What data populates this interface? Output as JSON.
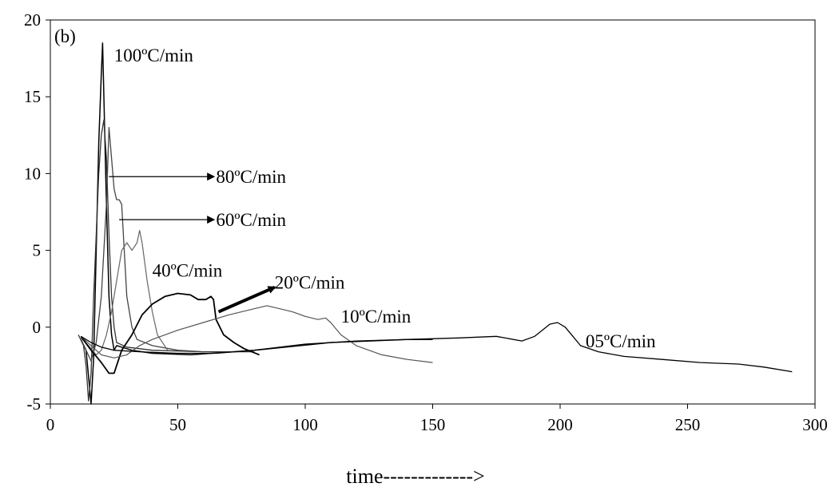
{
  "chart_data": {
    "type": "line",
    "title": "",
    "panel_label": "(b)",
    "xlabel": "time------------->",
    "ylabel": "",
    "xlim": [
      0,
      300
    ],
    "ylim": [
      -5,
      20
    ],
    "xticks": [
      0,
      50,
      100,
      150,
      200,
      250,
      300
    ],
    "yticks": [
      -5,
      0,
      5,
      10,
      15,
      20
    ],
    "grid": false,
    "legend": "none",
    "series": [
      {
        "name": "100ºC/min",
        "stroke": "#000000",
        "width": 1.5,
        "points": [
          [
            12,
            -0.8
          ],
          [
            14,
            -1.5
          ],
          [
            15,
            -3.2
          ],
          [
            16,
            -5
          ],
          [
            17,
            -2
          ],
          [
            18,
            5
          ],
          [
            19,
            12
          ],
          [
            20,
            16.5
          ],
          [
            20.5,
            18.5
          ],
          [
            21,
            15
          ],
          [
            22,
            8
          ],
          [
            23,
            2
          ],
          [
            24,
            -0.5
          ],
          [
            25,
            -1.5
          ],
          [
            26,
            -1.2
          ],
          [
            28,
            -1.3
          ],
          [
            32,
            -1.5
          ],
          [
            40,
            -1.7
          ],
          [
            55,
            -1.8
          ],
          [
            80,
            -1.5
          ],
          [
            110,
            -1
          ],
          [
            140,
            -0.8
          ],
          [
            150,
            -0.8
          ]
        ]
      },
      {
        "name": "80ºC/min",
        "stroke": "#333333",
        "width": 1.3,
        "points": [
          [
            11,
            -0.5
          ],
          [
            13,
            -1.2
          ],
          [
            14,
            -2.5
          ],
          [
            15,
            -4.8
          ],
          [
            16,
            -3
          ],
          [
            17,
            2
          ],
          [
            18,
            6
          ],
          [
            19,
            10
          ],
          [
            20,
            12.5
          ],
          [
            21,
            13.5
          ],
          [
            22,
            11
          ],
          [
            23,
            6
          ],
          [
            24,
            2
          ],
          [
            25,
            0
          ],
          [
            26,
            -1
          ],
          [
            30,
            -1.3
          ],
          [
            40,
            -1.5
          ],
          [
            60,
            -1.6
          ],
          [
            80,
            -1.6
          ]
        ]
      },
      {
        "name": "60ºC/min",
        "stroke": "#444444",
        "width": 1.3,
        "points": [
          [
            12,
            -0.8
          ],
          [
            14,
            -1.5
          ],
          [
            16,
            -2.2
          ],
          [
            18,
            -1
          ],
          [
            20,
            2
          ],
          [
            22,
            8
          ],
          [
            23,
            13
          ],
          [
            24,
            11
          ],
          [
            25,
            9
          ],
          [
            26,
            8.3
          ],
          [
            27,
            8.3
          ],
          [
            28,
            8
          ],
          [
            29,
            5
          ],
          [
            30,
            2
          ],
          [
            32,
            0
          ],
          [
            34,
            -0.8
          ],
          [
            40,
            -1.2
          ],
          [
            50,
            -1.5
          ],
          [
            60,
            -1.6
          ]
        ]
      },
      {
        "name": "40ºC/min",
        "stroke": "#666666",
        "width": 1.2,
        "points": [
          [
            12,
            -0.7
          ],
          [
            15,
            -1.2
          ],
          [
            18,
            -1.8
          ],
          [
            20,
            -1.5
          ],
          [
            22,
            -0.5
          ],
          [
            24,
            1
          ],
          [
            26,
            3
          ],
          [
            28,
            5
          ],
          [
            30,
            5.5
          ],
          [
            32,
            5
          ],
          [
            34,
            5.5
          ],
          [
            35,
            6.3
          ],
          [
            36,
            5.5
          ],
          [
            38,
            3
          ],
          [
            40,
            1
          ],
          [
            42,
            -0.5
          ],
          [
            44,
            -1
          ],
          [
            46,
            -1.5
          ]
        ]
      },
      {
        "name": "20ºC/min",
        "stroke": "#000000",
        "width": 1.8,
        "points": [
          [
            12,
            -0.6
          ],
          [
            16,
            -1.5
          ],
          [
            20,
            -2.3
          ],
          [
            23,
            -3
          ],
          [
            25,
            -3
          ],
          [
            28,
            -1.5
          ],
          [
            32,
            -0.5
          ],
          [
            36,
            0.8
          ],
          [
            40,
            1.5
          ],
          [
            45,
            2
          ],
          [
            50,
            2.2
          ],
          [
            55,
            2.1
          ],
          [
            58,
            1.8
          ],
          [
            61,
            1.8
          ],
          [
            63,
            2
          ],
          [
            64,
            1.8
          ],
          [
            65,
            0.5
          ],
          [
            68,
            -0.5
          ],
          [
            72,
            -1
          ],
          [
            76,
            -1.4
          ],
          [
            82,
            -1.8
          ]
        ]
      },
      {
        "name": "10ºC/min",
        "stroke": "#555555",
        "width": 1.2,
        "points": [
          [
            12,
            -0.6
          ],
          [
            16,
            -1.2
          ],
          [
            20,
            -1.8
          ],
          [
            25,
            -2
          ],
          [
            30,
            -1.8
          ],
          [
            35,
            -1.2
          ],
          [
            40,
            -0.8
          ],
          [
            50,
            -0.2
          ],
          [
            60,
            0.3
          ],
          [
            70,
            0.8
          ],
          [
            80,
            1.2
          ],
          [
            85,
            1.4
          ],
          [
            90,
            1.2
          ],
          [
            95,
            1
          ],
          [
            100,
            0.7
          ],
          [
            105,
            0.5
          ],
          [
            108,
            0.6
          ],
          [
            110,
            0.3
          ],
          [
            114,
            -0.5
          ],
          [
            120,
            -1.2
          ],
          [
            130,
            -1.8
          ],
          [
            140,
            -2.1
          ],
          [
            150,
            -2.3
          ]
        ]
      },
      {
        "name": "05ºC/min",
        "stroke": "#000000",
        "width": 1.3,
        "points": [
          [
            12,
            -0.6
          ],
          [
            16,
            -1
          ],
          [
            20,
            -1.3
          ],
          [
            25,
            -1.5
          ],
          [
            35,
            -1.6
          ],
          [
            50,
            -1.7
          ],
          [
            65,
            -1.7
          ],
          [
            80,
            -1.5
          ],
          [
            100,
            -1.1
          ],
          [
            120,
            -0.9
          ],
          [
            140,
            -0.8
          ],
          [
            160,
            -0.7
          ],
          [
            175,
            -0.6
          ],
          [
            185,
            -0.9
          ],
          [
            190,
            -0.6
          ],
          [
            193,
            -0.2
          ],
          [
            196,
            0.2
          ],
          [
            199,
            0.3
          ],
          [
            202,
            0
          ],
          [
            205,
            -0.6
          ],
          [
            208,
            -1.2
          ],
          [
            215,
            -1.6
          ],
          [
            225,
            -1.9
          ],
          [
            240,
            -2.1
          ],
          [
            255,
            -2.3
          ],
          [
            270,
            -2.4
          ],
          [
            280,
            -2.6
          ],
          [
            291,
            -2.9
          ]
        ]
      }
    ],
    "annotations": [
      {
        "text": "100ºC/min",
        "x": 25,
        "y": 17.3,
        "series": 0
      },
      {
        "text": "80ºC/min",
        "x": 65,
        "y": 9.4,
        "series": 1,
        "arrow_from": [
          23,
          9.8
        ],
        "arrow_to": [
          64,
          9.8
        ]
      },
      {
        "text": "60ºC/min",
        "x": 65,
        "y": 6.6,
        "series": 2,
        "arrow_from": [
          27,
          7
        ],
        "arrow_to": [
          64,
          7
        ]
      },
      {
        "text": "40ºC/min",
        "x": 40,
        "y": 3.3,
        "series": 3
      },
      {
        "text": "20ºC/min",
        "x": 88,
        "y": 2.5,
        "series": 4,
        "arrow_from": [
          66,
          1
        ],
        "arrow_to": [
          88,
          2.6
        ]
      },
      {
        "text": "10ºC/min",
        "x": 114,
        "y": 0.3,
        "series": 5
      },
      {
        "text": "05ºC/min",
        "x": 210,
        "y": -1.3,
        "series": 6
      }
    ]
  }
}
